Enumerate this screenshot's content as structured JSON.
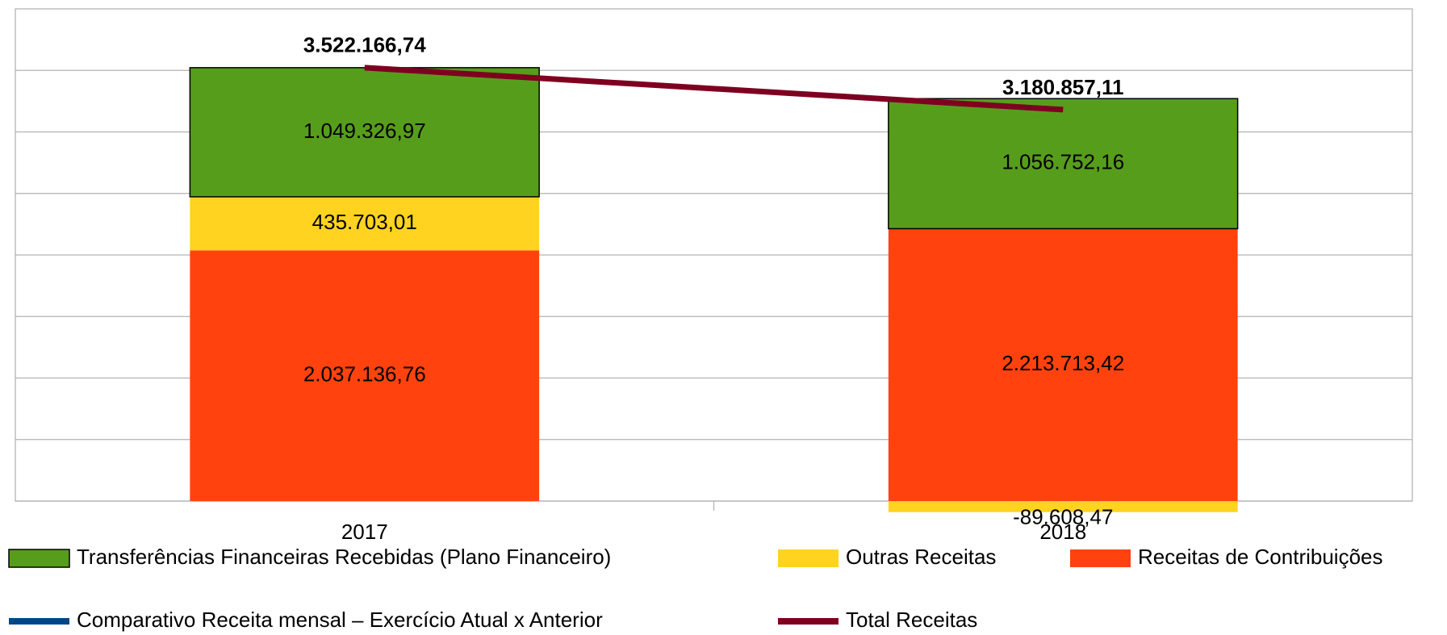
{
  "chart_data": {
    "type": "bar",
    "categories": [
      "2017",
      "2018"
    ],
    "ylim": [
      0,
      4000000
    ],
    "yticks": [
      0,
      500000,
      1000000,
      1500000,
      2000000,
      2500000,
      3000000,
      3500000
    ],
    "grid": true,
    "legend": "bottom",
    "series": [
      {
        "name": "Transferências Financeiras Recebidas (Plano Financeiro)",
        "type": "bar",
        "color": "#579d1c",
        "stroke": "#000000",
        "values": [
          1049326.97,
          1056752.16
        ],
        "value_labels": [
          "1.049.326,97",
          "1.056.752,16"
        ]
      },
      {
        "name": "Outras Receitas",
        "type": "bar",
        "color": "#ffd320",
        "values": [
          435703.01,
          -89608.47
        ],
        "value_labels": [
          "435.703,01",
          "-89.608,47"
        ]
      },
      {
        "name": "Receitas de Contribuições",
        "type": "bar",
        "color": "#ff420e",
        "values": [
          2037136.76,
          2213713.42
        ],
        "value_labels": [
          "2.037.136,76",
          "2.213.713,42"
        ]
      },
      {
        "name": "Comparativo Receita mensal – Exercício Atual x Anterior",
        "type": "line",
        "color": "#004586",
        "values": [
          null,
          null
        ]
      },
      {
        "name": "Total Receitas",
        "type": "line",
        "color": "#7e0021",
        "values": [
          3522166.74,
          3180857.11
        ],
        "value_labels": [
          "3.522.166,74",
          "3.180.857,11"
        ]
      }
    ]
  }
}
